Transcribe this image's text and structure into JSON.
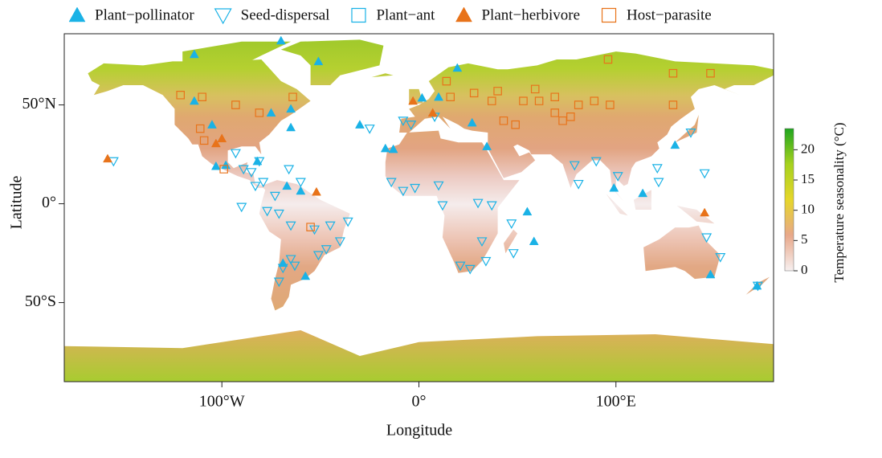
{
  "chart_data": {
    "type": "scatter",
    "xlabel": "Longitude",
    "ylabel": "Latitude",
    "xlim": [
      -180,
      180
    ],
    "ylim": [
      -90,
      86
    ],
    "xticks": [
      {
        "value": -100,
        "label": "100°W"
      },
      {
        "value": 0,
        "label": "0°"
      },
      {
        "value": 100,
        "label": "100°E"
      }
    ],
    "yticks": [
      {
        "value": 50,
        "label": "50°N"
      },
      {
        "value": 0,
        "label": "0°"
      },
      {
        "value": -50,
        "label": "50°S"
      }
    ],
    "legend": "top",
    "series": [
      {
        "name": "Plant−pollinator",
        "color": "#1ab2e6",
        "marker": "triangle-up",
        "filled": true,
        "x": [
          -114,
          -70,
          -51,
          -114,
          -105,
          -75,
          -65,
          -65,
          -103,
          -98,
          -82,
          -67,
          -60,
          -30,
          -17,
          -13,
          1.6,
          10,
          19.5,
          27,
          34.5,
          55,
          58.4,
          99,
          113.6,
          130,
          148,
          -57.6,
          -69,
          171.6
        ],
        "y": [
          75.6,
          82.5,
          72,
          52,
          40,
          46,
          48,
          38.6,
          19,
          19.5,
          21.5,
          9,
          6.5,
          40,
          28,
          27.6,
          53.6,
          54,
          68.7,
          41,
          29,
          -4,
          -19,
          8,
          5.3,
          29.7,
          -35.8,
          -36.6,
          -30,
          -41.5
        ]
      },
      {
        "name": "Seed-dispersal",
        "color": "#1ab2e6",
        "marker": "triangle-down",
        "filled": false,
        "x": [
          -155,
          -93,
          -89,
          -85,
          -83,
          -79,
          -73,
          -90,
          -77,
          -71,
          -65,
          -53,
          -45,
          -36,
          -40,
          -47,
          -51,
          -65,
          -69,
          -71,
          -63,
          -81,
          -66,
          -60,
          -8,
          -2,
          10,
          12,
          30,
          37,
          47,
          32,
          34,
          26,
          21,
          48,
          -8,
          -4,
          79,
          81,
          90,
          101,
          121,
          145,
          146,
          153,
          172,
          121.7,
          138,
          8,
          -25,
          -14
        ],
        "y": [
          21.5,
          25.6,
          17.5,
          16,
          9,
          11,
          4,
          -1.6,
          -3.7,
          -5,
          -11,
          -13,
          -11,
          -9,
          -19,
          -23,
          -26,
          -28,
          -32.5,
          -39.4,
          -31.3,
          21.5,
          17.5,
          11,
          6.5,
          8,
          9.3,
          -0.8,
          0.4,
          -0.8,
          -10,
          -19,
          -29,
          -33,
          -31.3,
          -25,
          42,
          40,
          19.5,
          10,
          21.5,
          14,
          18,
          15.4,
          -17,
          -27,
          -41.5,
          11,
          36,
          44,
          38,
          11
        ]
      },
      {
        "name": "Plant−ant",
        "color": "#1ab2e6",
        "marker": "square",
        "filled": false,
        "x": [],
        "y": []
      },
      {
        "name": "Plant−herbivore",
        "color": "#e8731a",
        "marker": "triangle-up",
        "filled": true,
        "x": [
          -158,
          -103,
          -100,
          -52,
          -3,
          7,
          145
        ],
        "y": [
          22.8,
          30.5,
          33,
          6,
          52,
          46,
          -4.5
        ]
      },
      {
        "name": "Host−parasite",
        "color": "#e8731a",
        "marker": "square",
        "filled": false,
        "x": [
          -121,
          -110,
          -93,
          -111,
          -109,
          -99,
          -81,
          -64,
          14,
          16,
          28,
          40,
          37,
          43,
          53,
          59,
          69,
          73,
          81,
          89,
          97,
          96,
          129,
          148,
          129,
          -55,
          69,
          77,
          49,
          61
        ],
        "y": [
          55,
          54,
          50,
          38,
          32,
          17.5,
          46,
          54,
          62,
          54,
          56,
          57,
          52,
          42,
          52,
          58,
          54,
          42,
          50,
          52,
          50,
          73,
          66,
          66,
          50,
          -11.8,
          46,
          44,
          40,
          52
        ]
      }
    ],
    "colorbar": {
      "label": "Temperature seasonality (°C)",
      "lim": [
        0,
        23.5
      ],
      "ticks": [
        0,
        5,
        10,
        15,
        20
      ],
      "colors": [
        "#f7f0f0",
        "#e8a88a",
        "#e6d62a",
        "#a6d21e",
        "#1fa51f"
      ]
    }
  }
}
